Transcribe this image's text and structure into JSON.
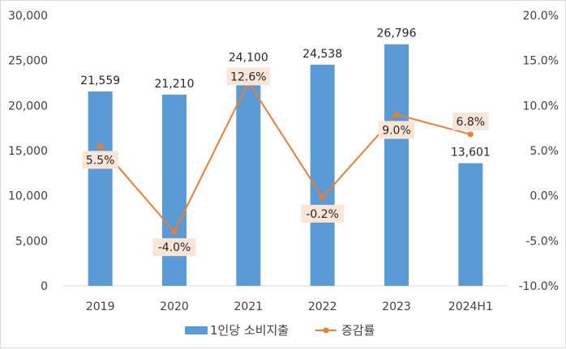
{
  "chart_data": {
    "type": "bar",
    "categories": [
      "2019",
      "2020",
      "2021",
      "2022",
      "2023",
      "2024H1"
    ],
    "series": [
      {
        "name": "1인당 소비지출",
        "type": "bar",
        "axis": "left",
        "values": [
          21559,
          21210,
          24100,
          24538,
          26796,
          13601
        ],
        "labels": [
          "21,559",
          "21,210",
          "24,100",
          "24,538",
          "26,796",
          "13,601"
        ],
        "color": "#5b9bd5"
      },
      {
        "name": "증감률",
        "type": "line",
        "axis": "right",
        "values": [
          5.5,
          -4.0,
          12.6,
          -0.2,
          9.0,
          6.8
        ],
        "labels": [
          "5.5%",
          "-4.0%",
          "12.6%",
          "-0.2%",
          "9.0%",
          "6.8%"
        ],
        "color": "#ed7d31",
        "label_background": "#fbe5d6"
      }
    ],
    "y_left": {
      "ylim": [
        0,
        30000
      ],
      "ticks": [
        0,
        5000,
        10000,
        15000,
        20000,
        25000,
        30000
      ],
      "tick_labels": [
        "0",
        "5,000",
        "10,000",
        "15,000",
        "20,000",
        "25,000",
        "30,000"
      ]
    },
    "y_right": {
      "ylim": [
        -10,
        20
      ],
      "ticks": [
        -10,
        -5,
        0,
        5,
        10,
        15,
        20
      ],
      "tick_labels": [
        "-10.0%",
        "-5.0%",
        "0.0%",
        "5.0%",
        "10.0%",
        "15.0%",
        "20.0%"
      ]
    },
    "grid": false,
    "legend": "bottom"
  }
}
